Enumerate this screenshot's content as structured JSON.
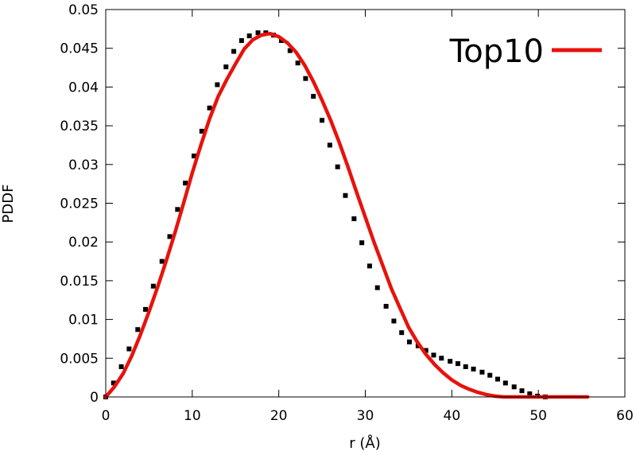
{
  "chart_data": {
    "type": "line",
    "title": "",
    "xlabel": "r (Å)",
    "ylabel": "PDDF",
    "xlim": [
      0,
      60
    ],
    "ylim": [
      0,
      0.05
    ],
    "x_ticks": [
      "0",
      "10",
      "20",
      "30",
      "40",
      "50",
      "60"
    ],
    "y_ticks": [
      "0",
      "0.005",
      "0.01",
      "0.015",
      "0.02",
      "0.025",
      "0.03",
      "0.035",
      "0.04",
      "0.045",
      "0.05"
    ],
    "grid": false,
    "legend_position": "top-right",
    "series": [
      {
        "kind": "points",
        "color": "#000000",
        "x": [
          0,
          0.9,
          1.8,
          2.7,
          3.7,
          4.6,
          5.5,
          6.5,
          7.4,
          8.3,
          9.2,
          10.2,
          11.1,
          12.0,
          12.9,
          13.9,
          14.8,
          15.7,
          16.6,
          17.6,
          18.5,
          19.4,
          20.3,
          21.3,
          22.2,
          23.1,
          24.0,
          25.0,
          25.9,
          26.8,
          27.7,
          28.7,
          29.6,
          30.5,
          31.4,
          32.4,
          33.3,
          34.2,
          35.1,
          36.1,
          37.0,
          37.9,
          38.8,
          39.8,
          40.7,
          41.6,
          42.5,
          43.5,
          44.4,
          45.3,
          46.2,
          47.2,
          48.1,
          49.0,
          49.9,
          50.8
        ],
        "y": [
          0.0,
          0.0018,
          0.0039,
          0.0062,
          0.0087,
          0.0113,
          0.0143,
          0.0175,
          0.0207,
          0.0242,
          0.0276,
          0.0311,
          0.0343,
          0.0373,
          0.0403,
          0.0426,
          0.0446,
          0.046,
          0.0466,
          0.047,
          0.047,
          0.0467,
          0.046,
          0.0447,
          0.0431,
          0.0411,
          0.0388,
          0.0357,
          0.0325,
          0.0297,
          0.026,
          0.023,
          0.0199,
          0.0169,
          0.0141,
          0.0117,
          0.0098,
          0.0083,
          0.0071,
          0.0066,
          0.006,
          0.0054,
          0.005,
          0.0046,
          0.0043,
          0.0039,
          0.0036,
          0.0032,
          0.0028,
          0.0023,
          0.0018,
          0.0013,
          0.0008,
          0.0004,
          0.0001,
          0.0
        ]
      },
      {
        "kind": "line",
        "name": "Top10",
        "color": "#e8120c",
        "x": [
          0,
          1,
          2,
          3,
          4,
          5,
          6,
          7,
          8,
          9,
          10,
          11,
          12,
          13,
          14,
          15,
          16,
          17,
          18,
          19,
          20,
          21,
          22,
          23,
          24,
          25,
          26,
          27,
          28,
          29,
          30,
          31,
          32,
          33,
          34,
          35,
          36,
          37,
          38,
          39,
          40,
          41,
          42,
          43,
          44,
          45,
          46,
          47,
          48,
          49,
          50,
          51,
          52,
          53,
          54,
          55,
          55.7
        ],
        "y": [
          0.0,
          0.0013,
          0.003,
          0.0053,
          0.008,
          0.011,
          0.0142,
          0.0176,
          0.0212,
          0.025,
          0.0289,
          0.0325,
          0.0359,
          0.0388,
          0.041,
          0.043,
          0.0449,
          0.0461,
          0.0467,
          0.0469,
          0.0465,
          0.0457,
          0.0445,
          0.0428,
          0.0407,
          0.0383,
          0.0357,
          0.0328,
          0.0297,
          0.0264,
          0.0232,
          0.02,
          0.017,
          0.014,
          0.0115,
          0.009,
          0.0071,
          0.0055,
          0.0042,
          0.0031,
          0.0022,
          0.0015,
          0.001,
          0.0006,
          0.0003,
          0.0001,
          0.0,
          0.0,
          0.0,
          0.0,
          0.0,
          0.0,
          0.0,
          0.0,
          0.0,
          0.0,
          0.0
        ]
      }
    ]
  }
}
